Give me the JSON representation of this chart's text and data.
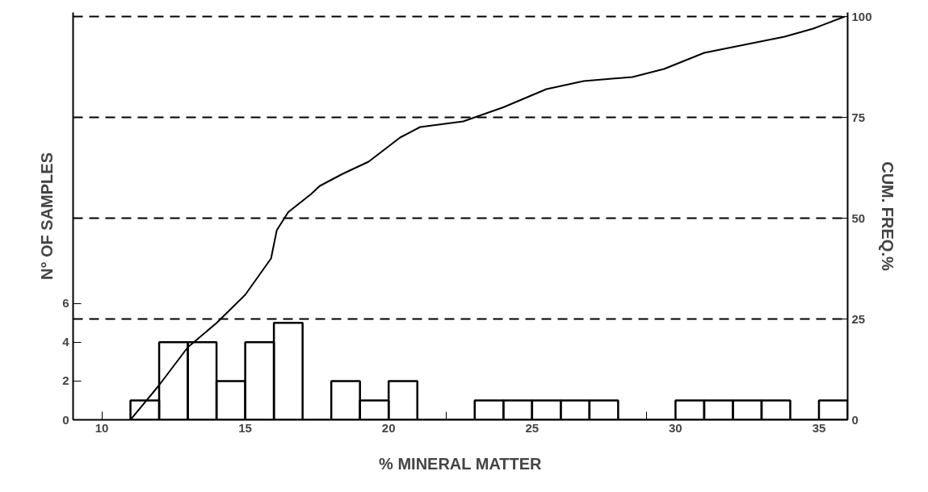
{
  "chart_data": {
    "type": "histogram",
    "xlabel": "% MINERAL MATTER",
    "ylabel": "N° OF SAMPLES",
    "y2label": "CUM. FREQ.%",
    "bins": [
      11,
      12,
      13,
      14,
      15,
      16,
      17,
      18,
      19,
      20,
      21,
      22,
      23,
      24,
      25,
      26,
      27,
      28,
      29,
      30,
      31,
      32,
      33,
      34,
      35,
      36
    ],
    "values": [
      1,
      4,
      4,
      2,
      4,
      5,
      0,
      2,
      1,
      2,
      0,
      0,
      1,
      1,
      1,
      1,
      1,
      0,
      0,
      1,
      1,
      1,
      1,
      0,
      1
    ],
    "color": "#000000",
    "series": [
      {
        "type": "line",
        "axis": "y2",
        "color": "#000000",
        "x": [
          11,
          12,
          13,
          14,
          15,
          15.9,
          16.1,
          16.5,
          17.3,
          17.6,
          18.4,
          19.3,
          20.4,
          21.1,
          22.6,
          24,
          25.5,
          26.8,
          28.5,
          29.6,
          31,
          32.4,
          33.8,
          34.8,
          35.9
        ],
        "values": [
          0,
          8.6,
          18,
          24,
          31,
          40,
          47,
          51.5,
          56,
          58,
          61,
          64,
          70,
          72.6,
          74,
          77.5,
          82,
          84,
          85,
          87,
          91,
          93,
          95,
          97,
          100
        ]
      }
    ],
    "xlim": [
      9,
      36
    ],
    "xticks": [
      10,
      15,
      20,
      25,
      30,
      35
    ],
    "ylim": [
      0,
      21
    ],
    "yticks": [
      0,
      2,
      4,
      6
    ],
    "y2lim": [
      0,
      101
    ],
    "y2ticks": [
      0,
      25,
      50,
      75,
      100
    ],
    "ref_lines": [
      {
        "axis": "y2",
        "value": 25,
        "line_style": "dashed"
      },
      {
        "axis": "y2",
        "value": 50,
        "line_style": "dashed"
      },
      {
        "axis": "y2",
        "value": 75,
        "line_style": "dashed"
      },
      {
        "axis": "y2",
        "value": 100,
        "line_style": "dashed"
      }
    ],
    "grid": false,
    "marker": "none",
    "line_style": "solid"
  }
}
